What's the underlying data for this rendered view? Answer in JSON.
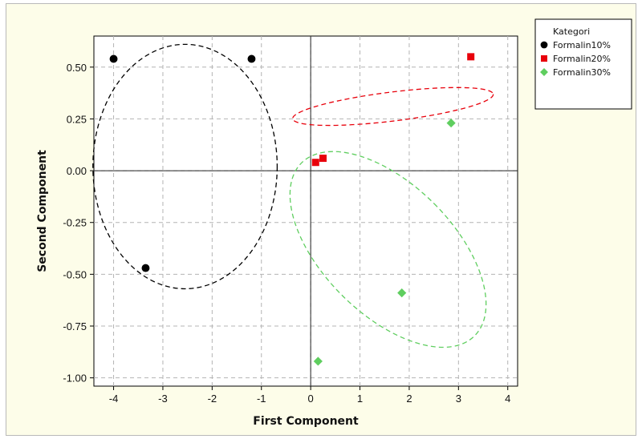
{
  "chart_data": {
    "type": "scatter",
    "xlabel": "First Component",
    "ylabel": "Second Component",
    "xlim": [
      -4.4,
      4.2
    ],
    "ylim": [
      -1.04,
      0.65
    ],
    "xticks": [
      -4,
      -3,
      -2,
      -1,
      0,
      1,
      2,
      3,
      4
    ],
    "yticks": [
      0.5,
      0.25,
      0.0,
      -0.25,
      -0.5,
      -0.75,
      -1.0
    ],
    "ytick_labels": [
      "0.50",
      "0.25",
      "0.00",
      "-0.25",
      "-0.50",
      "-0.75",
      "-1.00"
    ],
    "grid": true,
    "reference_lines": {
      "x": 0,
      "y": 0
    },
    "legend": {
      "title": "Kategori",
      "placement": "outside-right-top"
    },
    "series": [
      {
        "name": "Formalin10%",
        "marker": "circle",
        "color": "#000000",
        "points": [
          [
            -4.0,
            0.54
          ],
          [
            -1.2,
            0.54
          ],
          [
            -3.35,
            -0.47
          ]
        ],
        "ellipse": {
          "center": [
            -2.55,
            0.02
          ],
          "semi_x": 1.87,
          "semi_y": 0.59,
          "angle_deg": 0
        }
      },
      {
        "name": "Formalin20%",
        "marker": "square",
        "color": "#e8000b",
        "points": [
          [
            3.25,
            0.55
          ],
          [
            0.1,
            0.04
          ],
          [
            0.25,
            0.06
          ]
        ],
        "ellipse": {
          "center": [
            1.67,
            0.31
          ],
          "semi_x": 2.05,
          "semi_y": 0.07,
          "angle_deg": 7.0
        }
      },
      {
        "name": "Formalin30%",
        "marker": "diamond",
        "color": "#5fce5f",
        "points": [
          [
            2.85,
            0.23
          ],
          [
            1.85,
            -0.59
          ],
          [
            0.15,
            -0.92
          ]
        ],
        "ellipse": {
          "center": [
            1.57,
            -0.38
          ],
          "semi_x": 1.32,
          "semi_y": 0.59,
          "angle_deg": 45.0
        }
      }
    ]
  }
}
